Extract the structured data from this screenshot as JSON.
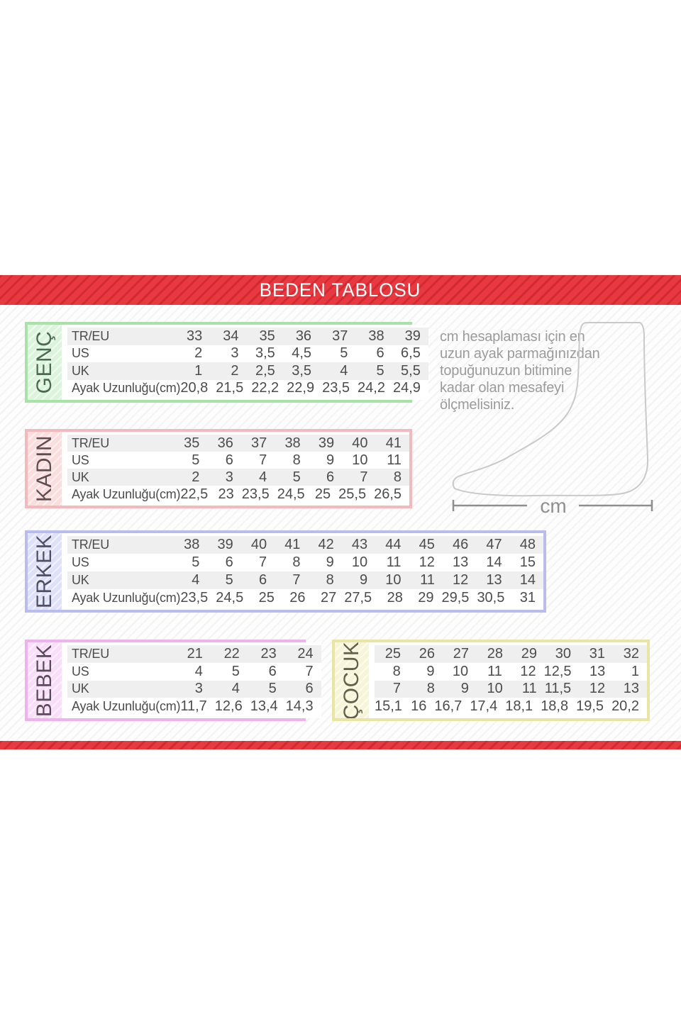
{
  "header": {
    "title": "BEDEN TABLOSU"
  },
  "info": {
    "text": "cm hesaplaması için en uzun ayak parmağınızdan topuğunuzun bitimine kadar olan mesafeyi ölçmelisiniz.",
    "unit": "cm"
  },
  "colors": {
    "banner_red": "#e7393f",
    "row_stripe_gray": "#efeff0",
    "table_text": "#4c4c4c",
    "info_text_gray": "#9b9b9b",
    "foot_outline_gray": "#c9c9c9",
    "measure_line_gray": "#8f8f8f"
  },
  "tables": [
    {
      "id": "genc",
      "label": "GENÇ",
      "theme": {
        "border": "#a7e3a7",
        "label_bg": "#dcf4dc",
        "label_color": "#4b6a52"
      },
      "row_labels": [
        "TR/EU",
        "US",
        "UK",
        "Ayak Uzunluğu(cm)"
      ],
      "rows": [
        [
          "33",
          "34",
          "35",
          "36",
          "37",
          "38",
          "39"
        ],
        [
          "2",
          "3",
          "3,5",
          "4,5",
          "5",
          "6",
          "6,5"
        ],
        [
          "1",
          "2",
          "2,5",
          "3,5",
          "4",
          "5",
          "5,5"
        ],
        [
          "20,8",
          "21,5",
          "22,2",
          "22,9",
          "23,5",
          "24,2",
          "24,9"
        ]
      ]
    },
    {
      "id": "kadin",
      "label": "KADIN",
      "theme": {
        "border": "#f3b9bd",
        "label_bg": "#fadddd",
        "label_color": "#5d4f51"
      },
      "row_labels": [
        "TR/EU",
        "US",
        "UK",
        "Ayak Uzunluğu(cm)"
      ],
      "rows": [
        [
          "35",
          "36",
          "37",
          "38",
          "39",
          "40",
          "41"
        ],
        [
          "5",
          "6",
          "7",
          "8",
          "9",
          "10",
          "11"
        ],
        [
          "2",
          "3",
          "4",
          "5",
          "6",
          "7",
          "8"
        ],
        [
          "22,5",
          "23",
          "23,5",
          "24,5",
          "25",
          "25,5",
          "26,5"
        ]
      ]
    },
    {
      "id": "erkek",
      "label": "ERKEK",
      "theme": {
        "border": "#b9bdee",
        "label_bg": "#dfe1f8",
        "label_color": "#4e4f60"
      },
      "row_labels": [
        "TR/EU",
        "US",
        "UK",
        "Ayak Uzunluğu(cm)"
      ],
      "rows": [
        [
          "38",
          "39",
          "40",
          "41",
          "42",
          "43",
          "44",
          "45",
          "46",
          "47",
          "48"
        ],
        [
          "5",
          "6",
          "7",
          "8",
          "9",
          "10",
          "11",
          "12",
          "13",
          "14",
          "15"
        ],
        [
          "4",
          "5",
          "6",
          "7",
          "8",
          "9",
          "10",
          "11",
          "12",
          "13",
          "14"
        ],
        [
          "23,5",
          "24,5",
          "25",
          "26",
          "27",
          "27,5",
          "28",
          "29",
          "29,5",
          "30,5",
          "31"
        ]
      ]
    },
    {
      "id": "bebek",
      "label": "BEBEK",
      "theme": {
        "border": "#eeb3ee",
        "label_bg": "#f9def9",
        "label_color": "#5a4b5a"
      },
      "row_labels": [
        "TR/EU",
        "US",
        "UK",
        "Ayak Uzunluğu(cm)"
      ],
      "rows": [
        [
          "21",
          "22",
          "23",
          "24"
        ],
        [
          "4",
          "5",
          "6",
          "7"
        ],
        [
          "3",
          "4",
          "5",
          "6"
        ],
        [
          "11,7",
          "12,6",
          "13,4",
          "14,3"
        ]
      ]
    },
    {
      "id": "cocuk",
      "label": "ÇOCUK",
      "theme": {
        "border": "#e9e5a2",
        "label_bg": "#f7f5d8",
        "label_color": "#62604a"
      },
      "row_labels": null,
      "rows": [
        [
          "25",
          "26",
          "27",
          "28",
          "29",
          "30",
          "31",
          "32"
        ],
        [
          "8",
          "9",
          "10",
          "11",
          "12",
          "12,5",
          "13",
          "1"
        ],
        [
          "7",
          "8",
          "9",
          "10",
          "11",
          "11,5",
          "12",
          "13"
        ],
        [
          "15,1",
          "16",
          "16,7",
          "17,4",
          "18,1",
          "18,8",
          "19,5",
          "20,2"
        ]
      ]
    }
  ]
}
